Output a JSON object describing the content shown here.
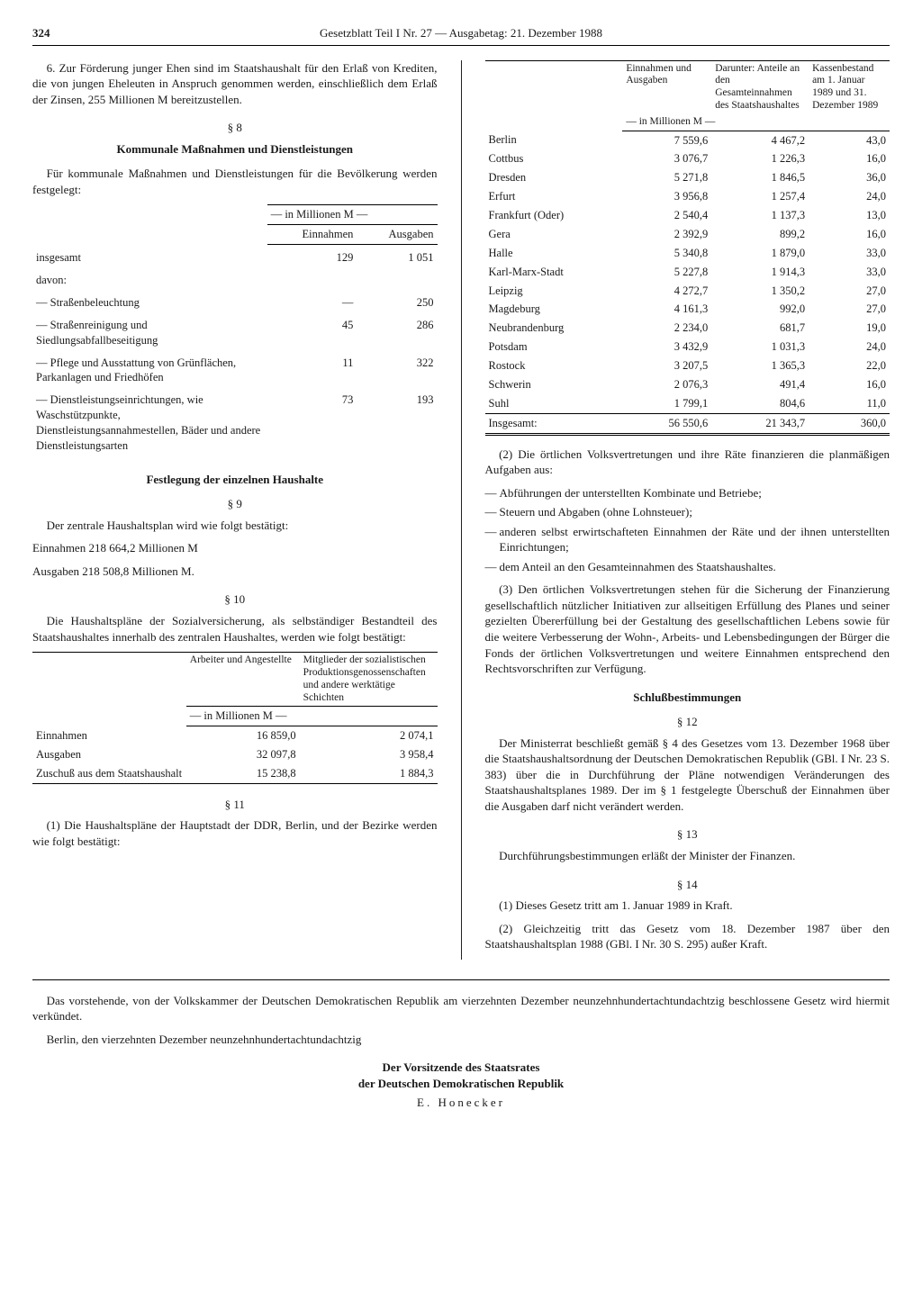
{
  "header": {
    "page_number": "324",
    "title": "Gesetzblatt Teil I Nr. 27 — Ausgabetag: 21. Dezember 1988"
  },
  "left": {
    "item6": "6. Zur Förderung junger Ehen sind im Staatshaushalt für den Erlaß von Krediten, die von jungen Eheleuten in Anspruch genommen werden, einschließlich dem Erlaß der Zinsen, 255 Millionen M bereitzustellen.",
    "s8_num": "§ 8",
    "s8_title": "Kommunale Maßnahmen und Dienstleistungen",
    "s8_intro": "Für kommunale Maßnahmen und Dienstleistungen für die Bevölkerung werden festgelegt:",
    "kom_table": {
      "unit": "— in Millionen M —",
      "col_in": "Einnahmen",
      "col_out": "Ausgaben",
      "rows": [
        {
          "label": "insgesamt",
          "in": "129",
          "out": "1 051"
        },
        {
          "label": "davon:",
          "in": "",
          "out": ""
        },
        {
          "label": "— Straßenbeleuchtung",
          "in": "—",
          "out": "250"
        },
        {
          "label": "— Straßenreinigung und Siedlungsabfallbeseitigung",
          "in": "45",
          "out": "286"
        },
        {
          "label": "— Pflege und Ausstattung von Grünflächen, Parkanlagen und Friedhöfen",
          "in": "11",
          "out": "322"
        },
        {
          "label": "— Dienstleistungseinrichtungen, wie Waschstützpunkte, Dienstleistungsannahmestellen, Bäder und andere Dienstleistungsarten",
          "in": "73",
          "out": "193"
        }
      ]
    },
    "fest_title": "Festlegung der einzelnen Haushalte",
    "s9_num": "§ 9",
    "s9_intro": "Der zentrale Haushaltsplan wird wie folgt bestätigt:",
    "s9_einn": "Einnahmen  218 664,2 Millionen M",
    "s9_ausg": "Ausgaben   218 508,8 Millionen M.",
    "s10_num": "§ 10",
    "s10_intro": "Die Haushaltspläne der Sozialversicherung, als selbständiger Bestandteil des Staatshaushaltes innerhalb des zentralen Haushaltes, werden wie folgt bestätigt:",
    "sv_table": {
      "col_a": "Arbeiter und Angestellte",
      "col_b": "Mitglieder der sozialistischen Produktionsgenossenschaften und andere werktätige Schichten",
      "unit": "— in Millionen M —",
      "rows": [
        {
          "label": "Einnahmen",
          "a": "16 859,0",
          "b": "2 074,1"
        },
        {
          "label": "Ausgaben",
          "a": "32 097,8",
          "b": "3 958,4"
        },
        {
          "label": "Zuschuß aus dem Staatshaushalt",
          "a": "15 238,8",
          "b": "1 884,3"
        }
      ]
    },
    "s11_num": "§ 11",
    "s11_p1": "(1) Die Haushaltspläne der Hauptstadt der DDR, Berlin, und der Bezirke werden wie folgt bestätigt:"
  },
  "right": {
    "district_table": {
      "hd1": "Einnahmen und Ausgaben",
      "hd2": "Darunter: Anteile an den Gesamteinnahmen des Staatshaushaltes",
      "hd3": "Kassenbestand am 1. Januar 1989 und 31. Dezember 1989",
      "unit": "— in Millionen M —",
      "rows": [
        {
          "name": "Berlin",
          "a": "7 559,6",
          "b": "4 467,2",
          "c": "43,0"
        },
        {
          "name": "Cottbus",
          "a": "3 076,7",
          "b": "1 226,3",
          "c": "16,0"
        },
        {
          "name": "Dresden",
          "a": "5 271,8",
          "b": "1 846,5",
          "c": "36,0"
        },
        {
          "name": "Erfurt",
          "a": "3 956,8",
          "b": "1 257,4",
          "c": "24,0"
        },
        {
          "name": "Frankfurt (Oder)",
          "a": "2 540,4",
          "b": "1 137,3",
          "c": "13,0"
        },
        {
          "name": "Gera",
          "a": "2 392,9",
          "b": "899,2",
          "c": "16,0"
        },
        {
          "name": "Halle",
          "a": "5 340,8",
          "b": "1 879,0",
          "c": "33,0"
        },
        {
          "name": "Karl-Marx-Stadt",
          "a": "5 227,8",
          "b": "1 914,3",
          "c": "33,0"
        },
        {
          "name": "Leipzig",
          "a": "4 272,7",
          "b": "1 350,2",
          "c": "27,0"
        },
        {
          "name": "Magdeburg",
          "a": "4 161,3",
          "b": "992,0",
          "c": "27,0"
        },
        {
          "name": "Neubrandenburg",
          "a": "2 234,0",
          "b": "681,7",
          "c": "19,0"
        },
        {
          "name": "Potsdam",
          "a": "3 432,9",
          "b": "1 031,3",
          "c": "24,0"
        },
        {
          "name": "Rostock",
          "a": "3 207,5",
          "b": "1 365,3",
          "c": "22,0"
        },
        {
          "name": "Schwerin",
          "a": "2 076,3",
          "b": "491,4",
          "c": "16,0"
        },
        {
          "name": "Suhl",
          "a": "1 799,1",
          "b": "804,6",
          "c": "11,0"
        }
      ],
      "total": {
        "name": "Insgesamt:",
        "a": "56 550,6",
        "b": "21 343,7",
        "c": "360,0"
      }
    },
    "s11_p2_intro": "(2) Die örtlichen Volksvertretungen und ihre Räte finanzieren die planmäßigen Aufgaben aus:",
    "s11_p2_items": [
      "Abführungen der unterstellten Kombinate und Betriebe;",
      "Steuern und Abgaben (ohne Lohnsteuer);",
      "anderen selbst erwirtschafteten Einnahmen der Räte und der ihnen unterstellten Einrichtungen;",
      "dem Anteil an den Gesamteinnahmen des Staatshaushaltes."
    ],
    "s11_p3": "(3) Den örtlichen Volksvertretungen stehen für die Sicherung der Finanzierung gesellschaftlich nützlicher Initiativen zur allseitigen Erfüllung des Planes und seiner gezielten Übererfüllung bei der Gestaltung des gesellschaftlichen Lebens sowie für die weitere Verbesserung der Wohn-, Arbeits- und Lebensbedingungen der Bürger die Fonds der örtlichen Volksvertretungen und weitere Einnahmen entsprechend den Rechtsvorschriften zur Verfügung.",
    "schluss_title": "Schlußbestimmungen",
    "s12_num": "§ 12",
    "s12": "Der Ministerrat beschließt gemäß § 4 des Gesetzes vom 13. Dezember 1968 über die Staatshaushaltsordnung der Deutschen Demokratischen Republik (GBl. I Nr. 23 S. 383) über die in Durchführung der Pläne notwendigen Veränderungen des Staatshaushaltsplanes 1989. Der im § 1 festgelegte Überschuß der Einnahmen über die Ausgaben darf nicht verändert werden.",
    "s13_num": "§ 13",
    "s13": "Durchführungsbestimmungen erläßt der Minister der Finanzen.",
    "s14_num": "§ 14",
    "s14_p1": "(1) Dieses Gesetz tritt am 1. Januar 1989 in Kraft.",
    "s14_p2": "(2) Gleichzeitig tritt das Gesetz vom 18. Dezember 1987 über den Staatshaushaltsplan 1988 (GBl. I Nr. 30 S. 295) außer Kraft."
  },
  "proclamation": {
    "p1": "Das vorstehende, von der Volkskammer der Deutschen Demokratischen Republik am vierzehnten Dezember neunzehnhundertachtundachtzig beschlossene Gesetz wird hiermit verkündet.",
    "p2": "Berlin, den vierzehnten Dezember neunzehnhundertachtundachtzig",
    "sig1": "Der Vorsitzende des Staatsrates",
    "sig2": "der Deutschen Demokratischen Republik",
    "name": "E. Honecker"
  }
}
